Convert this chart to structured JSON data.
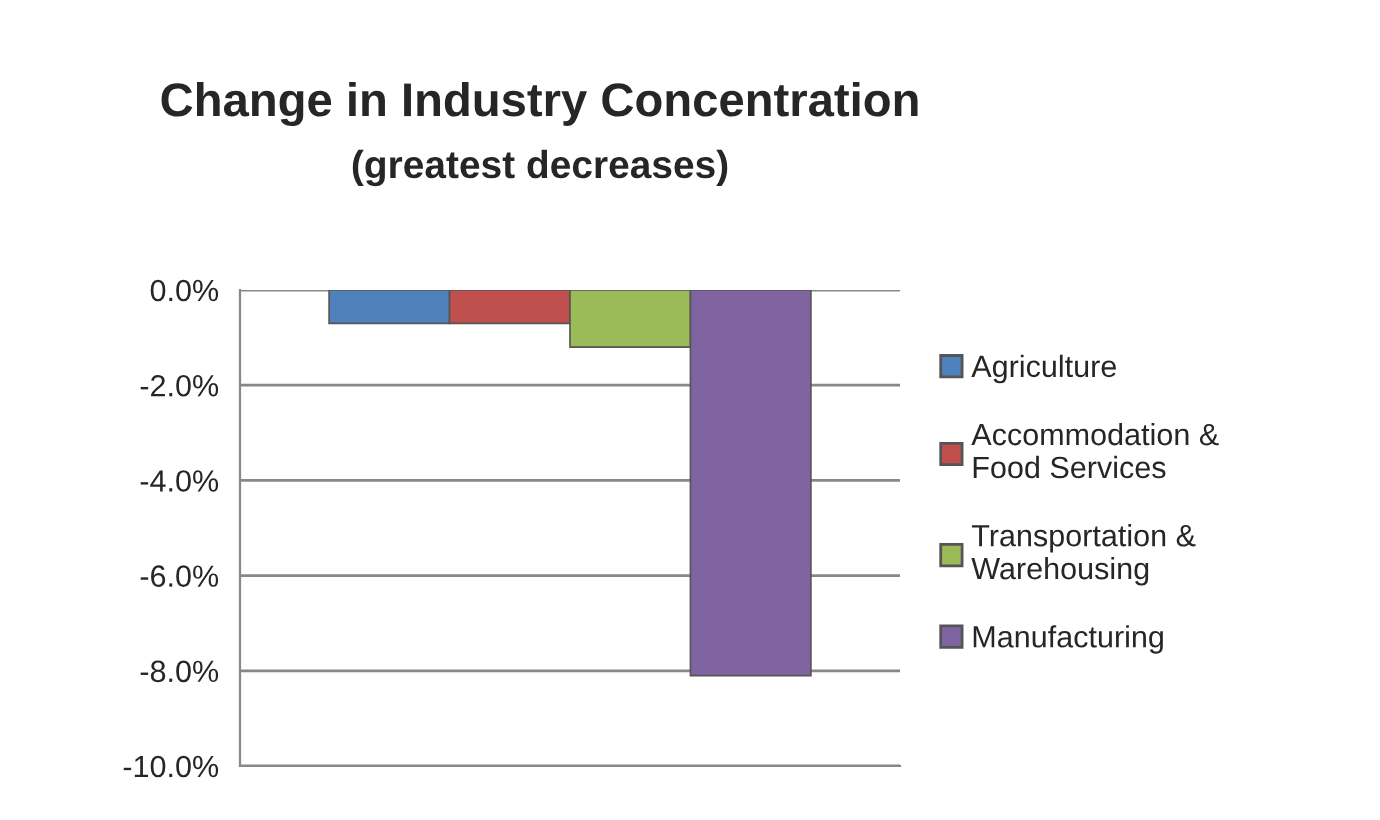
{
  "chart_data": {
    "type": "bar",
    "title": "Change in Industry Concentration",
    "subtitle": "(greatest decreases)",
    "categories": [
      null
    ],
    "series": [
      {
        "name": "Agriculture",
        "color": "#4f81bd",
        "values": [
          -0.7
        ]
      },
      {
        "name": "Accommodation & Food Services",
        "color": "#c0504d",
        "values": [
          -0.7
        ]
      },
      {
        "name": "Transportation & Warehousing",
        "color": "#9bbb59",
        "values": [
          -1.2
        ]
      },
      {
        "name": "Manufacturing",
        "color": "#8064a2",
        "values": [
          -8.1
        ]
      }
    ],
    "ylim": [
      -10,
      0
    ],
    "yticks": [
      {
        "value": 0,
        "label": "0.0%"
      },
      {
        "value": -2,
        "label": "-2.0%"
      },
      {
        "value": -4,
        "label": "-4.0%"
      },
      {
        "value": -6,
        "label": "-6.0%"
      },
      {
        "value": -8,
        "label": "-8.0%"
      },
      {
        "value": -10,
        "label": "-10.0%"
      }
    ],
    "grid": "y",
    "legend": "right"
  }
}
